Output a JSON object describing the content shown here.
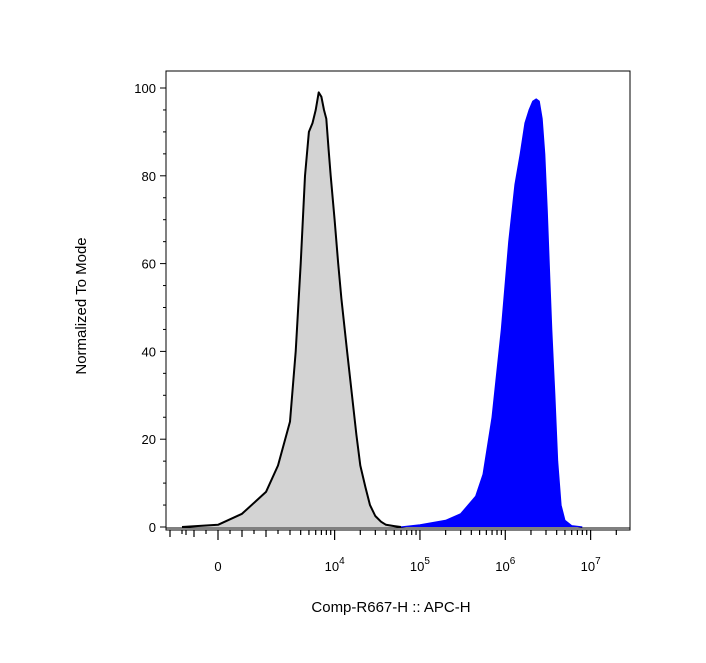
{
  "chart_data": {
    "type": "area",
    "xlabel": "Comp-R667-H :: APC-H",
    "ylabel": "Normalized To Mode",
    "x_scale": "biexponential",
    "ylim": [
      0,
      100
    ],
    "y_ticks": [
      0,
      20,
      40,
      60,
      80,
      100
    ],
    "x_tick_labels": [
      {
        "value": 0,
        "base": "0",
        "exp": ""
      },
      {
        "value": 10000,
        "base": "10",
        "exp": "4"
      },
      {
        "value": 100000,
        "base": "10",
        "exp": "5"
      },
      {
        "value": 1000000,
        "base": "10",
        "exp": "6"
      },
      {
        "value": 10000000,
        "base": "10",
        "exp": "7"
      }
    ],
    "grid": false,
    "legend": "none",
    "series": [
      {
        "color": "#d3d3d3",
        "stroke": "#000000",
        "x": [
          -1500,
          0,
          1000,
          2000,
          2500,
          3000,
          3500,
          4000,
          4500,
          5000,
          5500,
          6000,
          6500,
          7000,
          7500,
          8000,
          8500,
          9000,
          10000,
          11000,
          12000,
          14000,
          16000,
          18000,
          20000,
          23000,
          26000,
          30000,
          35000,
          40000,
          50000,
          60000
        ],
        "values": [
          0,
          0.5,
          3,
          8,
          14,
          24,
          40,
          60,
          80,
          90,
          92,
          95,
          99,
          98,
          95,
          93,
          86,
          80,
          70,
          60,
          52,
          40,
          30,
          21,
          14,
          9,
          5,
          2.5,
          1.2,
          0.5,
          0.2,
          0
        ]
      },
      {
        "color": "#0000ff",
        "stroke": "#0000ff",
        "x": [
          60000,
          100000,
          200000,
          300000,
          450000,
          550000,
          700000,
          900000,
          1100000,
          1300000,
          1500000,
          1700000,
          1900000,
          2100000,
          2300000,
          2500000,
          2700000,
          2900000,
          3100000,
          3300000,
          3500000,
          3800000,
          4100000,
          4500000,
          5000000,
          6000000,
          8000000
        ],
        "values": [
          0,
          0.5,
          1.5,
          3,
          7,
          12,
          25,
          45,
          65,
          78,
          85,
          92,
          95,
          97,
          97.5,
          97,
          93,
          85,
          72,
          58,
          45,
          30,
          15,
          5,
          1.5,
          0.3,
          0
        ]
      }
    ]
  }
}
